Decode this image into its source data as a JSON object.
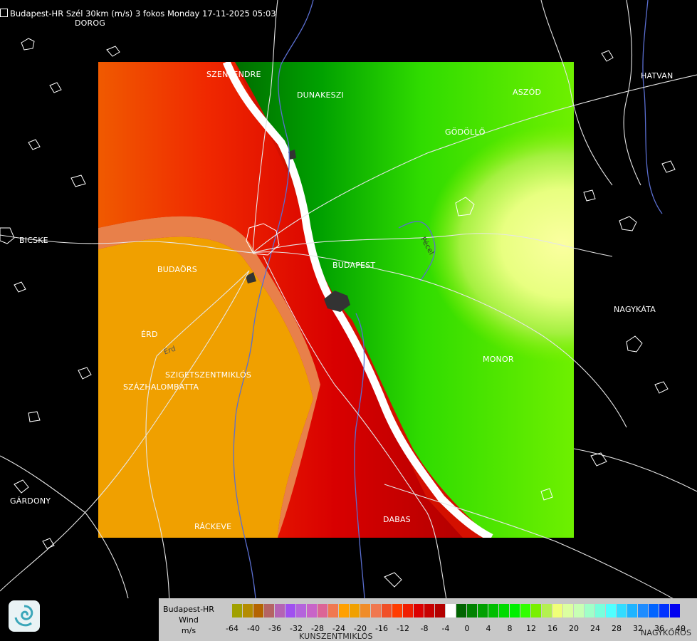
{
  "title": "Budapest-HR Szél 30km (m/s) 3 fokos Monday 17-11-2025 05:03",
  "places": {
    "dorog": "DOROG",
    "szentendre": "SZENTENDRE",
    "dunakeszi": "DUNAKESZI",
    "hatvan": "HATVAN",
    "aszod": "ASZÓD",
    "godollo": "GÖDÖLLŐ",
    "bicske": "BICSKE",
    "budaors": "BUDAÖRS",
    "budapest": "BUDAPEST",
    "pecel": "Pécel",
    "nagykata": "NAGYKÁTA",
    "erd": "ÉRD",
    "erd_small": "Érd",
    "szigetszentmiklos": "SZIGETSZENTMIKLÓS",
    "szazhalombatta": "SZÁZHALOMBATTA",
    "monor": "MONOR",
    "gardony": "GÁRDONY",
    "rackeve": "RÁCKEVE",
    "dabas": "DABAS",
    "kunszentmiklos": "KUNSZENTMIKLÓS",
    "nagykoros": "NAGYKŐRÖS"
  },
  "legend": {
    "line1": "Budapest-HR",
    "line2": "Wind",
    "line3": "m/s",
    "ticks": [
      "-64",
      "-40",
      "-36",
      "-32",
      "-28",
      "-24",
      "-20",
      "-16",
      "-12",
      "-8",
      "-4",
      "0",
      "4",
      "8",
      "12",
      "16",
      "20",
      "24",
      "28",
      "32",
      "36",
      "40"
    ],
    "colors": [
      "#c8c8c8",
      "#a0a000",
      "#b48c00",
      "#b46400",
      "#b46464",
      "#b464b4",
      "#a050f0",
      "#b464dc",
      "#c864c8",
      "#dc6496",
      "#f07850",
      "#ffa000",
      "#f0a000",
      "#f08c28",
      "#f07850",
      "#f05028",
      "#ff3c00",
      "#f01e00",
      "#dc0000",
      "#c80000",
      "#b40000",
      "#ffffff",
      "#006400",
      "#008200",
      "#00a000",
      "#00be00",
      "#00dc00",
      "#00f000",
      "#32ff00",
      "#78f000",
      "#b4f050",
      "#f0ff78",
      "#dcffa0",
      "#c8ffb4",
      "#a0ffc8",
      "#78ffdc",
      "#50ffff",
      "#32dcff",
      "#1eb4ff",
      "#1e8cff",
      "#0064ff",
      "#0032ff",
      "#0000f0"
    ]
  },
  "colors": {
    "background": "#000000",
    "far_side": "#f5a020",
    "away": "#c80000",
    "toward": "#00b400",
    "toward_max": "#f0ff96",
    "border": "#ffffff",
    "river": "#5a6ed0"
  }
}
